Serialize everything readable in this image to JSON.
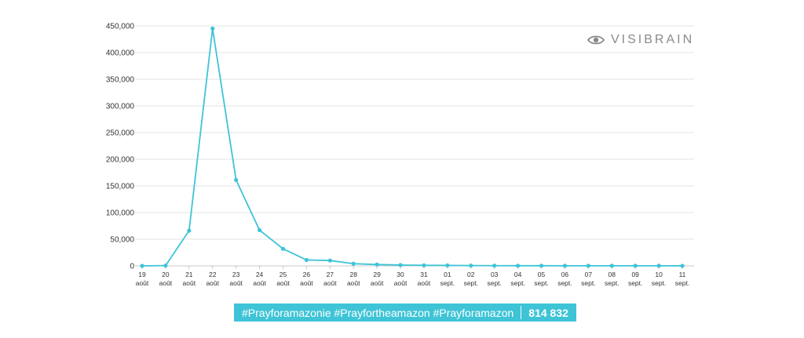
{
  "brand": {
    "name": "VISIBRAIN",
    "icon": "eye-icon"
  },
  "banner": {
    "hashtags": "#Prayforamazonie #Prayfortheamazon #Prayforamazon",
    "count": "814 832",
    "color": "#3ec4d6"
  },
  "chart_data": {
    "type": "line",
    "title": "",
    "xlabel": "",
    "ylabel": "",
    "ylim": [
      0,
      450000
    ],
    "y_ticks": [
      "0",
      "50,000",
      "100,000",
      "150,000",
      "200,000",
      "250,000",
      "300,000",
      "350,000",
      "400,000",
      "450,000"
    ],
    "grid": true,
    "line_color": "#3ec4d6",
    "categories": [
      {
        "day": "19",
        "month": "août"
      },
      {
        "day": "20",
        "month": "août"
      },
      {
        "day": "21",
        "month": "août"
      },
      {
        "day": "22",
        "month": "août"
      },
      {
        "day": "23",
        "month": "août"
      },
      {
        "day": "24",
        "month": "août"
      },
      {
        "day": "25",
        "month": "août"
      },
      {
        "day": "26",
        "month": "août"
      },
      {
        "day": "27",
        "month": "août"
      },
      {
        "day": "28",
        "month": "août"
      },
      {
        "day": "29",
        "month": "août"
      },
      {
        "day": "30",
        "month": "août"
      },
      {
        "day": "31",
        "month": "août"
      },
      {
        "day": "01",
        "month": "sept."
      },
      {
        "day": "02",
        "month": "sept."
      },
      {
        "day": "03",
        "month": "sept."
      },
      {
        "day": "04",
        "month": "sept."
      },
      {
        "day": "05",
        "month": "sept."
      },
      {
        "day": "06",
        "month": "sept."
      },
      {
        "day": "07",
        "month": "sept."
      },
      {
        "day": "08",
        "month": "sept."
      },
      {
        "day": "09",
        "month": "sept."
      },
      {
        "day": "10",
        "month": "sept."
      },
      {
        "day": "11",
        "month": "sept."
      }
    ],
    "values": [
      0,
      500,
      66000,
      445000,
      161000,
      67000,
      32000,
      11000,
      10000,
      4000,
      2500,
      1500,
      1000,
      800,
      500,
      400,
      300,
      300,
      200,
      200,
      200,
      200,
      200,
      100
    ]
  }
}
